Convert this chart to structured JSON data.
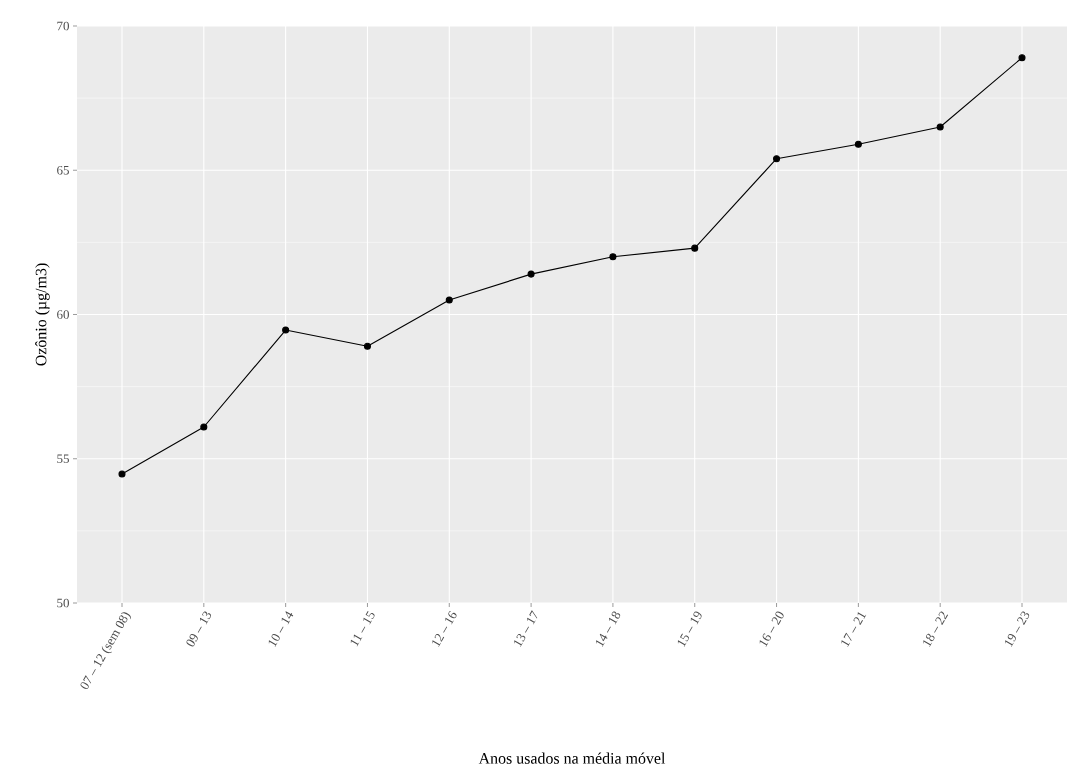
{
  "chart_data": {
    "type": "line",
    "xlabel": "Anos usados na média móvel",
    "ylabel": "Ozônio (µg/m3)",
    "categories": [
      "07 – 12 (sem 08)",
      "09 – 13",
      "10 – 14",
      "11 – 15",
      "12 – 16",
      "13 – 17",
      "14 – 18",
      "15 – 19",
      "16 – 20",
      "17 – 21",
      "18 – 22",
      "19 – 23"
    ],
    "values": [
      54.47,
      56.1,
      59.46,
      58.9,
      60.5,
      61.4,
      62.0,
      62.3,
      65.4,
      65.9,
      66.5,
      68.9
    ],
    "color": "#000000",
    "ylim": [
      50,
      70
    ],
    "yticks": [
      50,
      55,
      60,
      65,
      70
    ],
    "grid": true,
    "marker": "circle",
    "line_style": "solid"
  }
}
